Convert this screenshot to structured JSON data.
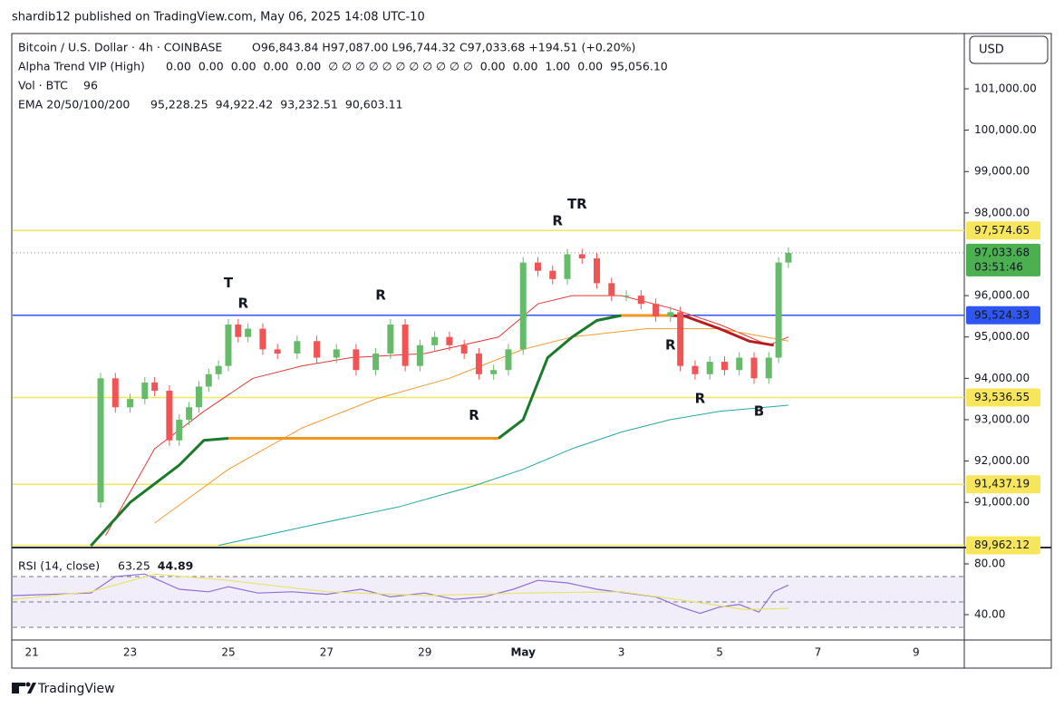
{
  "header": "shardib12 published on TradingView.com, May 06, 2025 14:08 UTC-10",
  "footer": "TradingView",
  "legend": {
    "symbol": "Bitcoin / U.S. Dollar · 4h · COINBASE",
    "ohlc": "O96,843.84 H97,087.00 L96,744.32 C97,033.68 +194.51 (+0.20%)",
    "alpha": "Alpha Trend VIP (High)",
    "alpha_values": [
      "0.00",
      "0.00",
      "0.00",
      "0.00",
      "0.00",
      "∅ ∅ ∅ ∅ ∅ ∅ ∅ ∅ ∅ ∅ ∅",
      "0.00",
      "0.00",
      "1.00",
      "0.00",
      "95,056.10"
    ],
    "vol": "Vol · BTC",
    "vol_value": "96",
    "ema": "EMA 20/50/100/200",
    "ema_values": [
      "95,228.25",
      "94,922.42",
      "93,232.51",
      "90,603.11"
    ]
  },
  "chart_data": [
    {
      "type": "candlestick",
      "currency": "USD",
      "x": [
        22.2,
        22.4,
        22.7,
        23.0,
        23.3,
        23.5,
        23.8,
        24.0,
        24.2,
        24.4,
        24.6,
        24.8,
        25.0,
        25.2,
        25.4,
        25.7,
        26.0,
        26.4,
        26.8,
        27.2,
        27.6,
        28.0,
        28.3,
        28.6,
        28.9,
        29.2,
        29.5,
        29.8,
        30.1,
        30.4,
        30.7,
        31.0,
        31.3,
        31.6,
        31.9,
        32.2,
        32.5,
        32.8,
        33.1,
        33.4,
        33.7,
        34.0,
        34.2,
        34.5,
        34.8,
        35.1,
        35.4,
        35.7,
        36.0,
        36.2,
        36.4
      ],
      "values": [
        91000,
        94000,
        93300,
        93500,
        93900,
        93700,
        92500,
        93000,
        93300,
        93800,
        94100,
        94300,
        95300,
        95000,
        95200,
        94700,
        94600,
        94900,
        94500,
        94700,
        94200,
        94600,
        95300,
        94300,
        94800,
        95000,
        94800,
        94600,
        94100,
        94200,
        94700,
        96800,
        96600,
        96400,
        97000,
        96900,
        96300,
        96000,
        96000,
        95800,
        95500,
        95600,
        94300,
        94100,
        94400,
        94200,
        94500,
        94000,
        94500,
        96800,
        97033.68
      ],
      "up_color": "#66bb6a",
      "down_color": "#f05454",
      "xlim": [
        20.61,
        39.98
      ],
      "xticks": [
        21,
        23,
        25,
        27,
        29,
        {
          "value": 31,
          "label": "May"
        },
        {
          "value": 33,
          "label": "3"
        },
        {
          "value": 35,
          "label": "5"
        },
        {
          "value": 37,
          "label": "7"
        },
        {
          "value": 39,
          "label": "9"
        }
      ],
      "ylim": [
        89930,
        102315
      ],
      "yticks": [
        {
          "value": 101000,
          "label": "101,000.00"
        },
        {
          "value": 100000,
          "label": "100,000.00"
        },
        {
          "value": 99000,
          "label": "99,000.00"
        },
        {
          "value": 98000,
          "label": "98,000.00"
        },
        {
          "value": 96000,
          "label": "96,000.00"
        },
        {
          "value": 95000,
          "label": "95,000.00"
        },
        {
          "value": 94000,
          "label": "94,000.00"
        },
        {
          "value": 93000,
          "label": "93,000.00"
        },
        {
          "value": 92000,
          "label": "92,000.00"
        },
        {
          "value": 91000,
          "label": "91,000.00"
        }
      ],
      "lines": [
        {
          "color": "#e53935",
          "x": [
            22.5,
            23.5,
            24.5,
            25.5,
            26.5,
            27.5,
            29,
            30.5,
            31.3,
            32,
            33,
            34,
            35,
            36,
            36.4
          ],
          "values": [
            90200,
            92300,
            93200,
            94000,
            94300,
            94500,
            94600,
            95000,
            95800,
            96000,
            96000,
            95700,
            95300,
            94800,
            95000
          ]
        },
        {
          "color": "#f59b33",
          "x": [
            23.5,
            25,
            26.5,
            28,
            29.5,
            31,
            32,
            33.5,
            35,
            36.4
          ],
          "values": [
            90500,
            91800,
            92800,
            93500,
            94000,
            94700,
            95000,
            95200,
            95200,
            94900
          ]
        },
        {
          "color": "#26a6a6",
          "x": [
            24.8,
            26.5,
            28.5,
            30,
            31,
            32,
            33,
            34,
            35,
            36.4
          ],
          "values": [
            89960,
            90400,
            90900,
            91400,
            91800,
            92300,
            92700,
            93000,
            93200,
            93350
          ]
        },
        {
          "color": "#1b7a2a",
          "width": 3,
          "x": [
            22.2,
            23,
            24,
            24.5,
            25
          ],
          "values": [
            89950,
            91000,
            91900,
            92500,
            92550
          ]
        },
        {
          "color": "#f5941d",
          "width": 3,
          "x": [
            25,
            30.5
          ],
          "values": [
            92550,
            92550
          ]
        },
        {
          "color": "#1b7a2a",
          "width": 3,
          "x": [
            30.5,
            31,
            31.5,
            32,
            32.5,
            33
          ],
          "values": [
            92550,
            93000,
            94500,
            95000,
            95400,
            95520
          ]
        },
        {
          "color": "#f5941d",
          "width": 3,
          "x": [
            33,
            34
          ],
          "values": [
            95520,
            95520
          ]
        },
        {
          "color": "#b71c1c",
          "width": 3,
          "x": [
            34,
            34.3,
            35,
            35.6,
            36.1
          ],
          "values": [
            95520,
            95500,
            95200,
            94900,
            94800
          ]
        }
      ],
      "levels": [
        {
          "value": 97574.65,
          "label": "97,574.65",
          "color": "#f7e55c"
        },
        {
          "value": 93536.55,
          "label": "93,536.55",
          "color": "#f7e55c"
        },
        {
          "value": 91437.19,
          "label": "91,437.19",
          "color": "#f7e55c"
        },
        {
          "value": 89962.12,
          "label": "89,962.12",
          "color": "#f7e55c"
        },
        {
          "value": 95524.33,
          "label": "95,524.33",
          "color": "#2f56f0"
        }
      ],
      "current": {
        "value": 97033.68,
        "label": "97,033.68",
        "countdown": "03:51:46",
        "color": "#4caf50"
      },
      "annotations": [
        {
          "text": "T",
          "x": 25.0,
          "y": 96300,
          "color": "#f5941d"
        },
        {
          "text": "R",
          "x": 25.3,
          "y": 95800,
          "color": "#f2d13a"
        },
        {
          "text": "R",
          "x": 28.1,
          "y": 96000,
          "color": "#f2d13a"
        },
        {
          "text": "R",
          "x": 31.7,
          "y": 97800,
          "color": "#f2d13a"
        },
        {
          "text": "TR",
          "x": 32.1,
          "y": 98200,
          "color": "#f2d13a"
        },
        {
          "text": "R",
          "x": 30.0,
          "y": 93100,
          "color": "#4dd0b1"
        },
        {
          "text": "R",
          "x": 34.0,
          "y": 94800,
          "color": "#4dd0b1"
        },
        {
          "text": "R",
          "x": 34.6,
          "y": 93500,
          "color": "#4dd0b1"
        },
        {
          "text": "B",
          "x": 35.8,
          "y": 93200,
          "color": "#2f6ff0"
        }
      ]
    },
    {
      "type": "line",
      "title": "RSI (14, close)",
      "xlim": [
        20.61,
        39.98
      ],
      "ylim": [
        20.7,
        91.4
      ],
      "yticks": [
        {
          "value": 80,
          "label": "80.00"
        },
        {
          "value": 40,
          "label": "40.00"
        }
      ],
      "bands": [
        70,
        50,
        30
      ],
      "series": [
        {
          "color": "#8e6fd8",
          "value_label": "63.25",
          "x": [
            20.61,
            22.2,
            22.7,
            23.3,
            24,
            24.6,
            25,
            25.6,
            26.3,
            27,
            27.7,
            28.3,
            29,
            29.6,
            30.2,
            30.8,
            31.3,
            31.9,
            32.5,
            33.1,
            33.7,
            34.2,
            34.6,
            35,
            35.4,
            35.8,
            36.1,
            36.4
          ],
          "values": [
            55,
            57,
            70,
            72,
            60,
            58,
            62,
            57,
            58,
            56,
            60,
            54,
            57,
            52,
            54,
            60,
            67,
            65,
            60,
            57,
            54,
            46,
            41,
            46,
            48,
            42,
            58,
            63.25
          ]
        },
        {
          "color": "#e8e36a",
          "value_label": "44.89",
          "x": [
            20.61,
            22.2,
            23.5,
            25,
            27,
            29,
            31,
            33,
            34.5,
            35.5,
            36.4
          ],
          "values": [
            52,
            58,
            72,
            67,
            58,
            55,
            57,
            58,
            50,
            44,
            44.89
          ]
        }
      ]
    }
  ]
}
